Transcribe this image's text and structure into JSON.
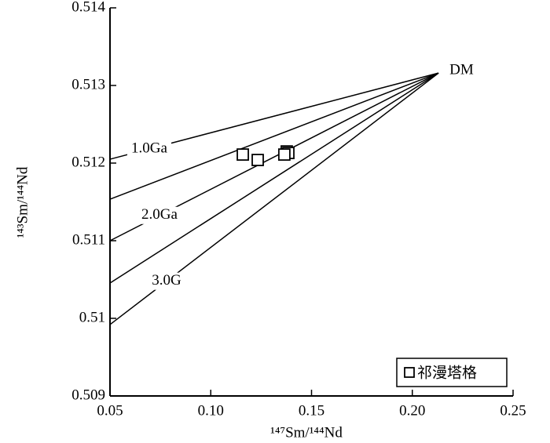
{
  "chart_data": {
    "type": "scatter",
    "xlabel": "¹⁴⁷Sm/¹⁴⁴Nd",
    "ylabel": "¹⁴³Sm/¹⁴⁴Nd",
    "xlim": [
      0.05,
      0.25
    ],
    "xticks": [
      0.05,
      {
        "value": 0.1,
        "label": "0.10"
      },
      0.15,
      {
        "value": 0.2,
        "label": "0.20"
      },
      0.25
    ],
    "ylim": [
      0.509,
      0.514
    ],
    "yticks": [
      0.509,
      0.51,
      0.511,
      0.512,
      0.513,
      0.514
    ],
    "series": [
      {
        "name": "祁漫塔格",
        "color": "#000000",
        "marker": "square",
        "x": [
          0.1159,
          0.1233,
          0.1377,
          0.1385,
          0.1365
        ],
        "values": [
          0.51211,
          0.51204,
          0.51215,
          0.51213,
          0.51211
        ]
      }
    ],
    "lines": [
      {
        "label": "1.0Ga",
        "x": [
          0.05,
          0.213
        ],
        "y": [
          0.51205,
          0.51316
        ]
      },
      {
        "x": [
          0.05,
          0.213
        ],
        "y": [
          0.511535,
          0.51316
        ]
      },
      {
        "label": "2.0Ga",
        "x": [
          0.05,
          0.213
        ],
        "y": [
          0.511,
          0.51316
        ]
      },
      {
        "x": [
          0.05,
          0.213
        ],
        "y": [
          0.510455,
          0.51316
        ]
      },
      {
        "label": "3.0G",
        "x": [
          0.05,
          0.213
        ],
        "y": [
          0.50992,
          0.51316
        ]
      }
    ],
    "annotations": [
      {
        "text": "DM",
        "x": 0.213,
        "y": 0.51316
      }
    ],
    "legend": "lower right"
  }
}
